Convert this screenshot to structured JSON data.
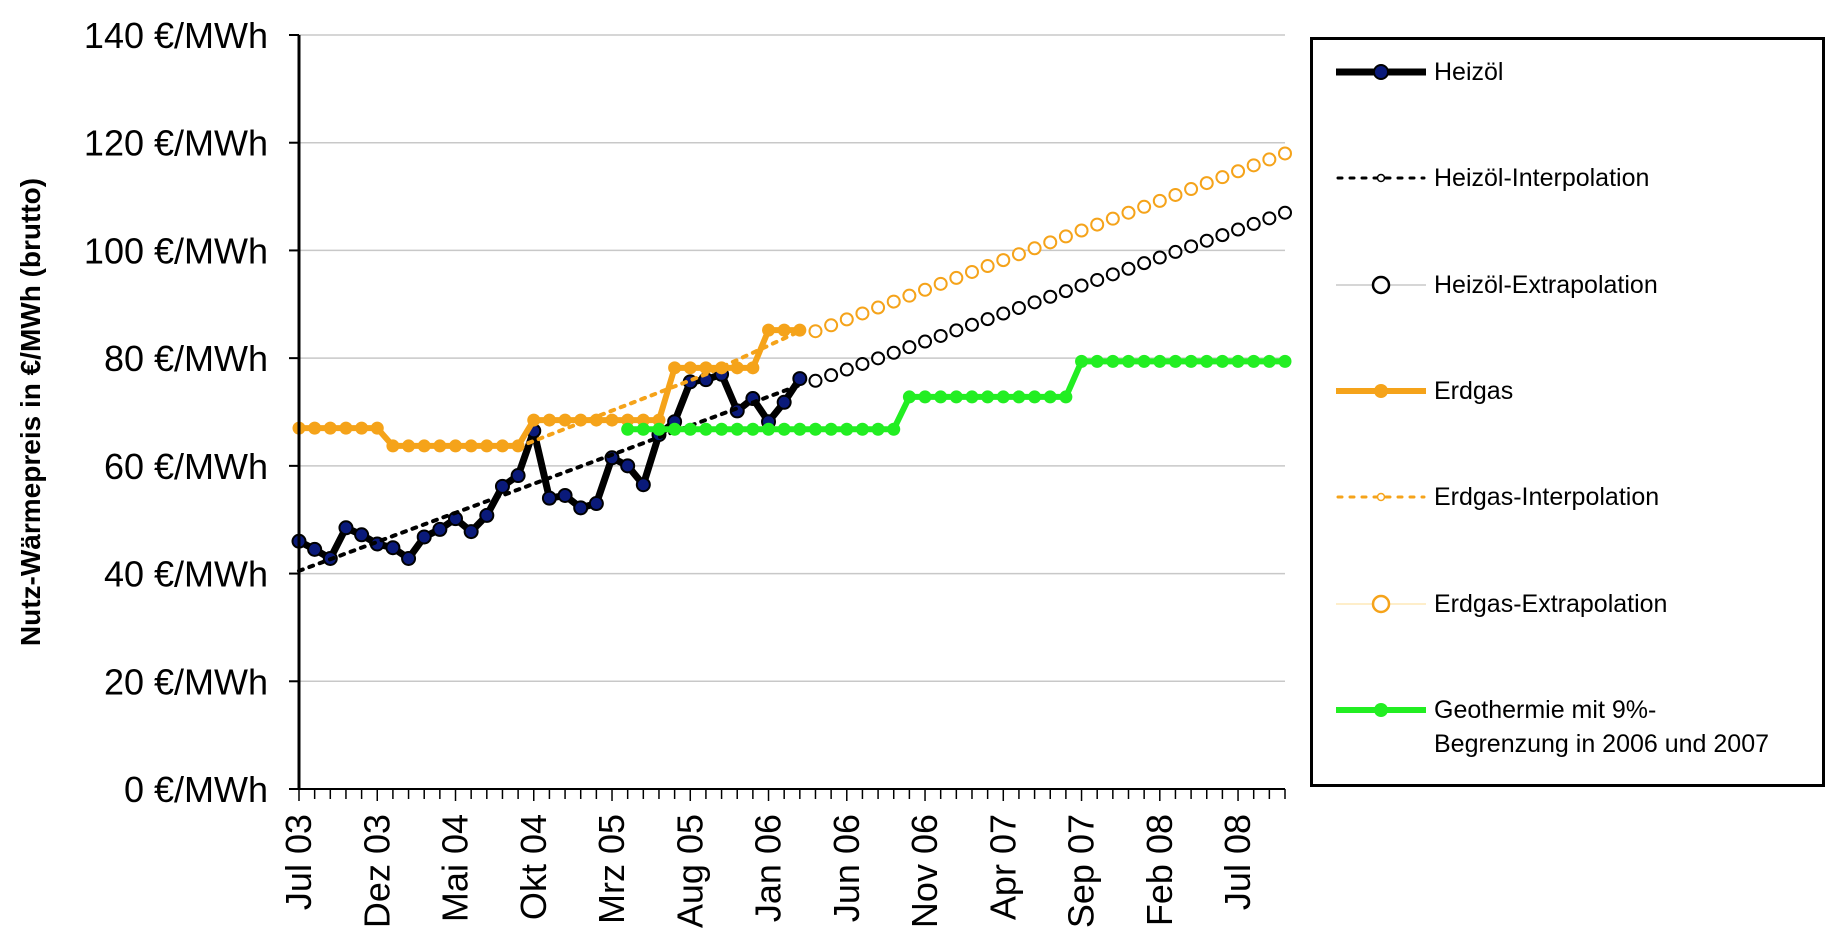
{
  "chart_data": {
    "type": "line",
    "ylabel": "Nutz-Wärmepreis in €/MWh (brutto)",
    "y_unit": "€/MWh",
    "ylim": [
      0,
      140
    ],
    "y_ticks": [
      0,
      20,
      40,
      60,
      80,
      100,
      120,
      140
    ],
    "y_tick_labels": [
      "0 €/MWh",
      "20 €/MWh",
      "40 €/MWh",
      "60 €/MWh",
      "80 €/MWh",
      "100 €/MWh",
      "120 €/MWh",
      "140 €/MWh"
    ],
    "x_start": "2003-07",
    "x_end": "2008-10",
    "x_tick_labels": [
      "Jul 03",
      "Dez 03",
      "Mai 04",
      "Okt 04",
      "Mrz 05",
      "Aug 05",
      "Jan 06",
      "Jun 06",
      "Nov 06",
      "Apr 07",
      "Sep 07",
      "Feb 08",
      "Jul 08"
    ],
    "grid": "horizontal",
    "legend_position": "right",
    "series": [
      {
        "name": "Heizöl",
        "style": "line-markers",
        "color": "#000000",
        "marker_fill": "#0a1a7a",
        "x": [
          "2003-07",
          "2003-08",
          "2003-09",
          "2003-10",
          "2003-11",
          "2003-12",
          "2004-01",
          "2004-02",
          "2004-03",
          "2004-04",
          "2004-05",
          "2004-06",
          "2004-07",
          "2004-08",
          "2004-09",
          "2004-10",
          "2004-11",
          "2004-12",
          "2005-01",
          "2005-02",
          "2005-03",
          "2005-04",
          "2005-05",
          "2005-06",
          "2005-07",
          "2005-08",
          "2005-09",
          "2005-10",
          "2005-11",
          "2005-12",
          "2006-01",
          "2006-02",
          "2006-03"
        ],
        "y": [
          46,
          44.5,
          42.8,
          48.5,
          47.2,
          45.5,
          44.8,
          42.8,
          46.8,
          48.2,
          50.2,
          47.8,
          50.8,
          56.2,
          58.2,
          66.5,
          54.0,
          54.5,
          52.2,
          53.0,
          61.5,
          60.0,
          56.5,
          65.8,
          68.2,
          75.6,
          76.0,
          77.0,
          70.2,
          72.5,
          68.2,
          71.8,
          76.2
        ]
      },
      {
        "name": "Heizöl-Interpolation",
        "style": "dotted",
        "color": "#000000",
        "x": [
          "2003-07",
          "2006-03"
        ],
        "y": [
          40.5,
          75.0
        ]
      },
      {
        "name": "Heizöl-Extrapolation",
        "style": "open-circles",
        "color": "#000000",
        "x": [
          "2006-04",
          "2008-10"
        ],
        "y": [
          75.8,
          107.0
        ]
      },
      {
        "name": "Erdgas",
        "style": "line-markers",
        "color": "#f5a31a",
        "x": [
          "2003-07",
          "2003-08",
          "2003-09",
          "2003-10",
          "2003-11",
          "2003-12",
          "2004-01",
          "2004-02",
          "2004-03",
          "2004-04",
          "2004-05",
          "2004-06",
          "2004-07",
          "2004-08",
          "2004-09",
          "2004-10",
          "2004-11",
          "2004-12",
          "2005-01",
          "2005-02",
          "2005-03",
          "2005-04",
          "2005-05",
          "2005-06",
          "2005-07",
          "2005-08",
          "2005-09",
          "2005-10",
          "2005-11",
          "2005-12",
          "2006-01",
          "2006-02",
          "2006-03"
        ],
        "y": [
          67,
          67,
          67,
          67,
          67,
          67,
          63.7,
          63.7,
          63.7,
          63.7,
          63.7,
          63.7,
          63.7,
          63.7,
          63.7,
          68.5,
          68.5,
          68.5,
          68.5,
          68.5,
          68.5,
          68.5,
          68.5,
          68.5,
          78.2,
          78.2,
          78.2,
          78.2,
          78.2,
          78.2,
          85.2,
          85.2,
          85.2
        ]
      },
      {
        "name": "Erdgas-Interpolation",
        "style": "dotted",
        "color": "#f5a31a",
        "x": [
          "2004-09",
          "2005-09",
          "2006-03"
        ],
        "y": [
          63.5,
          77.0,
          85.0
        ]
      },
      {
        "name": "Erdgas-Extrapolation",
        "style": "open-circles",
        "color": "#f5a31a",
        "x": [
          "2006-04",
          "2008-10"
        ],
        "y": [
          85.0,
          118.0
        ]
      },
      {
        "name": "Geothermie mit 9%-\nBegrenzung in 2006 und 2007",
        "style": "line-markers",
        "color": "#22ee22",
        "x": [
          "2005-04",
          "2006-09",
          "2006-10",
          "2007-08",
          "2007-09",
          "2008-10"
        ],
        "y": [
          66.8,
          66.8,
          72.8,
          72.8,
          79.4,
          79.4
        ]
      }
    ]
  }
}
